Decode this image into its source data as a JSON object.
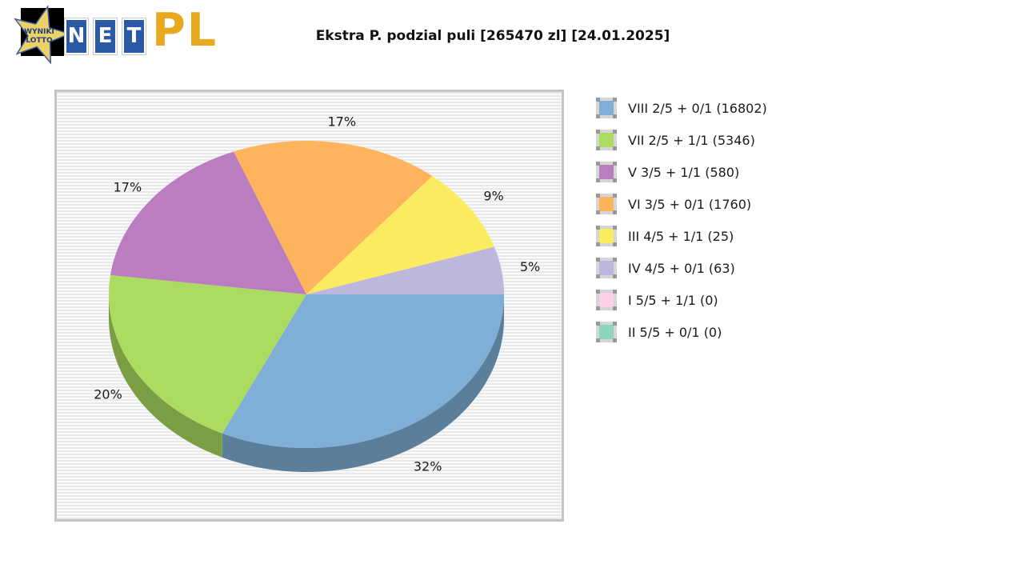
{
  "header": {
    "title": "Ekstra P. podzial puli [265470 zl] [24.01.2025]",
    "logo": {
      "star_line1": "WYNIKI",
      "star_line2": "LOTTO",
      "net_letters": [
        "N",
        "E",
        "T"
      ],
      "suffix": "PL",
      "colors": {
        "tile_blue": "#2A59A5",
        "gold": "#E9A91E",
        "star_fill": "#ECD168",
        "star_text": "#1F3E7E"
      }
    }
  },
  "chart_data": {
    "type": "pie",
    "title": "Ekstra P. podzial puli [265470 zl] [24.01.2025]",
    "pool_label": "265470 zl",
    "date": "24.01.2025",
    "effect": "3d",
    "direction": "clockwise",
    "start_angle_deg": 0,
    "legend_position": "right",
    "items": [
      {
        "label": "VIII 2/5 + 0/1 (16802)",
        "tier": "VIII 2/5 + 0/1",
        "winners": 16802,
        "percent": 32,
        "percent_label": "32%",
        "color": "#7FAFD7"
      },
      {
        "label": "VII 2/5 + 1/1 (5346)",
        "tier": "VII 2/5 + 1/1",
        "winners": 5346,
        "percent": 20,
        "percent_label": "20%",
        "color": "#ABDC5F"
      },
      {
        "label": "V 3/5 + 1/1 (580)",
        "tier": "V 3/5 + 1/1",
        "winners": 580,
        "percent": 17,
        "percent_label": "17%",
        "color": "#BA7EC0"
      },
      {
        "label": "VI 3/5 + 0/1 (1760)",
        "tier": "VI 3/5 + 0/1",
        "winners": 1760,
        "percent": 17,
        "percent_label": "17%",
        "color": "#FDB45C"
      },
      {
        "label": "III 4/5 + 1/1 (25)",
        "tier": "III 4/5 + 1/1",
        "winners": 25,
        "percent": 9,
        "percent_label": "9%",
        "color": "#FBEB60"
      },
      {
        "label": "IV 4/5 + 0/1 (63)",
        "tier": "IV 4/5 + 0/1",
        "winners": 63,
        "percent": 5,
        "percent_label": "5%",
        "color": "#BFB6DD"
      },
      {
        "label": "I 5/5 + 1/1 (0)",
        "tier": "I 5/5 + 1/1",
        "winners": 0,
        "percent": 0,
        "percent_label": null,
        "color": "#FBD0E8"
      },
      {
        "label": "II 5/5 + 0/1 (0)",
        "tier": "II 5/5 + 0/1",
        "winners": 0,
        "percent": 0,
        "percent_label": null,
        "color": "#8DD3BE"
      }
    ]
  }
}
